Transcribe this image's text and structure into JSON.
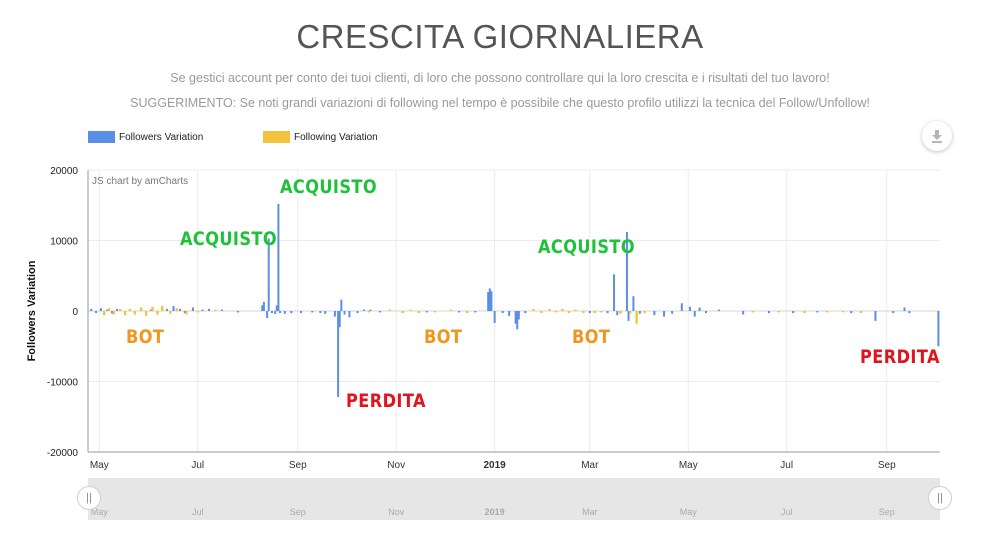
{
  "header": {
    "title": "CRESCITA GIORNALIERA",
    "description_1": "Se gestici account per conto dei tuoi clienti, di loro che possono controllare qui la loro crescita e i risultati del tuo lavoro!",
    "description_2": "SUGGERIMENTO: Se noti grandi variazioni di following nel tempo è possibile che questo profilo utilizzi la tecnica del Follow/Unfollow!"
  },
  "legend": [
    {
      "label": "Followers Variation",
      "color": "#5b8ee6"
    },
    {
      "label": "Following Variation",
      "color": "#f2c43d"
    }
  ],
  "download_icon": "download-icon",
  "credit": "JS chart by amCharts",
  "annotations": [
    {
      "text": "ACQUISTO",
      "color": "#1ec13a"
    },
    {
      "text": "ACQUISTO",
      "color": "#1ec13a"
    },
    {
      "text": "ACQUISTO",
      "color": "#1ec13a"
    },
    {
      "text": "BOT",
      "color": "#f0961e"
    },
    {
      "text": "BOT",
      "color": "#f0961e"
    },
    {
      "text": "BOT",
      "color": "#f0961e"
    },
    {
      "text": "PERDITA",
      "color": "#e0141e"
    },
    {
      "text": "PERDITA",
      "color": "#e0141e"
    }
  ],
  "chart_data": {
    "type": "bar",
    "title": "",
    "ylabel": "Followers Variation",
    "xlabel": "",
    "ylim": [
      -20000,
      20000
    ],
    "yticks": [
      20000,
      10000,
      0,
      -10000,
      -20000
    ],
    "xlim": [
      "2018-04-24",
      "2019-10-04"
    ],
    "xticks": [
      {
        "date": "2018-05-01",
        "label": "May",
        "bold": false
      },
      {
        "date": "2018-07-01",
        "label": "Jul",
        "bold": false
      },
      {
        "date": "2018-09-01",
        "label": "Sep",
        "bold": false
      },
      {
        "date": "2018-11-01",
        "label": "Nov",
        "bold": false
      },
      {
        "date": "2019-01-01",
        "label": "2019",
        "bold": true
      },
      {
        "date": "2019-03-01",
        "label": "Mar",
        "bold": false
      },
      {
        "date": "2019-05-01",
        "label": "May",
        "bold": false
      },
      {
        "date": "2019-07-01",
        "label": "Jul",
        "bold": false
      },
      {
        "date": "2019-09-01",
        "label": "Sep",
        "bold": false
      }
    ],
    "grid": true,
    "legend_position": "top-left",
    "series": [
      {
        "name": "Followers Variation",
        "color": "#5b8ee6",
        "points": [
          {
            "x": "2018-04-26",
            "y": 300
          },
          {
            "x": "2018-04-29",
            "y": -300
          },
          {
            "x": "2018-05-02",
            "y": 400
          },
          {
            "x": "2018-05-06",
            "y": 200
          },
          {
            "x": "2018-05-09",
            "y": -400
          },
          {
            "x": "2018-05-12",
            "y": 300
          },
          {
            "x": "2018-06-02",
            "y": 200
          },
          {
            "x": "2018-06-12",
            "y": 300
          },
          {
            "x": "2018-06-16",
            "y": 700
          },
          {
            "x": "2018-06-20",
            "y": 300
          },
          {
            "x": "2018-06-23",
            "y": -300
          },
          {
            "x": "2018-06-28",
            "y": 500
          },
          {
            "x": "2018-07-04",
            "y": 200
          },
          {
            "x": "2018-07-08",
            "y": 300
          },
          {
            "x": "2018-07-16",
            "y": 200
          },
          {
            "x": "2018-07-26",
            "y": -200
          },
          {
            "x": "2018-08-10",
            "y": 800
          },
          {
            "x": "2018-08-11",
            "y": 1300
          },
          {
            "x": "2018-08-13",
            "y": -1000
          },
          {
            "x": "2018-08-14",
            "y": 10300
          },
          {
            "x": "2018-08-16",
            "y": -300
          },
          {
            "x": "2018-08-18",
            "y": -400
          },
          {
            "x": "2018-08-19",
            "y": 800
          },
          {
            "x": "2018-08-20",
            "y": 15200
          },
          {
            "x": "2018-08-21",
            "y": -300
          },
          {
            "x": "2018-08-24",
            "y": -400
          },
          {
            "x": "2018-08-28",
            "y": -300
          },
          {
            "x": "2018-09-03",
            "y": -300
          },
          {
            "x": "2018-09-10",
            "y": -200
          },
          {
            "x": "2018-09-15",
            "y": -300
          },
          {
            "x": "2018-09-18",
            "y": -400
          },
          {
            "x": "2018-09-24",
            "y": -800
          },
          {
            "x": "2018-09-26",
            "y": -12200
          },
          {
            "x": "2018-09-27",
            "y": -2300
          },
          {
            "x": "2018-09-28",
            "y": 1600
          },
          {
            "x": "2018-09-30",
            "y": -500
          },
          {
            "x": "2018-10-03",
            "y": -900
          },
          {
            "x": "2018-10-08",
            "y": -300
          },
          {
            "x": "2018-10-12",
            "y": 200
          },
          {
            "x": "2018-10-16",
            "y": 200
          },
          {
            "x": "2018-10-22",
            "y": -200
          },
          {
            "x": "2018-11-20",
            "y": -200
          },
          {
            "x": "2018-12-10",
            "y": -200
          },
          {
            "x": "2018-12-20",
            "y": -200
          },
          {
            "x": "2018-12-28",
            "y": 2700
          },
          {
            "x": "2018-12-29",
            "y": 3200
          },
          {
            "x": "2018-12-30",
            "y": 2800
          },
          {
            "x": "2019-01-01",
            "y": -1700
          },
          {
            "x": "2019-01-06",
            "y": -300
          },
          {
            "x": "2019-01-10",
            "y": -700
          },
          {
            "x": "2019-01-14",
            "y": -1800
          },
          {
            "x": "2019-01-15",
            "y": -2600
          },
          {
            "x": "2019-01-16",
            "y": -1200
          },
          {
            "x": "2019-01-20",
            "y": -300
          },
          {
            "x": "2019-03-01",
            "y": -300
          },
          {
            "x": "2019-03-12",
            "y": -300
          },
          {
            "x": "2019-03-16",
            "y": 5200
          },
          {
            "x": "2019-03-18",
            "y": -600
          },
          {
            "x": "2019-03-24",
            "y": 11200
          },
          {
            "x": "2019-03-25",
            "y": -1400
          },
          {
            "x": "2019-03-28",
            "y": 2100
          },
          {
            "x": "2019-04-01",
            "y": -400
          },
          {
            "x": "2019-04-10",
            "y": -600
          },
          {
            "x": "2019-04-16",
            "y": -800
          },
          {
            "x": "2019-04-21",
            "y": -400
          },
          {
            "x": "2019-04-27",
            "y": 1100
          },
          {
            "x": "2019-05-02",
            "y": 600
          },
          {
            "x": "2019-05-05",
            "y": -800
          },
          {
            "x": "2019-05-08",
            "y": 500
          },
          {
            "x": "2019-05-12",
            "y": -300
          },
          {
            "x": "2019-05-20",
            "y": 200
          },
          {
            "x": "2019-06-04",
            "y": -500
          },
          {
            "x": "2019-06-20",
            "y": -300
          },
          {
            "x": "2019-07-05",
            "y": -300
          },
          {
            "x": "2019-07-20",
            "y": -200
          },
          {
            "x": "2019-08-10",
            "y": -300
          },
          {
            "x": "2019-08-25",
            "y": -1400
          },
          {
            "x": "2019-09-05",
            "y": -300
          },
          {
            "x": "2019-09-12",
            "y": 500
          },
          {
            "x": "2019-09-15",
            "y": -300
          },
          {
            "x": "2019-10-03",
            "y": -5000
          }
        ]
      },
      {
        "name": "Following Variation",
        "color": "#f2c43d",
        "points": [
          {
            "x": "2018-05-04",
            "y": -600
          },
          {
            "x": "2018-05-07",
            "y": 400
          },
          {
            "x": "2018-05-10",
            "y": -500
          },
          {
            "x": "2018-05-14",
            "y": 300
          },
          {
            "x": "2018-05-17",
            "y": -600
          },
          {
            "x": "2018-05-20",
            "y": 300
          },
          {
            "x": "2018-05-23",
            "y": -500
          },
          {
            "x": "2018-05-27",
            "y": 500
          },
          {
            "x": "2018-05-30",
            "y": -700
          },
          {
            "x": "2018-06-03",
            "y": 600
          },
          {
            "x": "2018-06-06",
            "y": -500
          },
          {
            "x": "2018-06-09",
            "y": 700
          },
          {
            "x": "2018-06-14",
            "y": -400
          },
          {
            "x": "2018-06-18",
            "y": 400
          },
          {
            "x": "2018-06-24",
            "y": -500
          },
          {
            "x": "2018-07-01",
            "y": -200
          },
          {
            "x": "2018-07-12",
            "y": 200
          },
          {
            "x": "2018-10-15",
            "y": -200
          },
          {
            "x": "2018-10-28",
            "y": 200
          },
          {
            "x": "2018-11-05",
            "y": -300
          },
          {
            "x": "2018-11-10",
            "y": 200
          },
          {
            "x": "2018-11-15",
            "y": -300
          },
          {
            "x": "2018-11-25",
            "y": -200
          },
          {
            "x": "2018-12-05",
            "y": 200
          },
          {
            "x": "2018-12-15",
            "y": -300
          },
          {
            "x": "2019-01-25",
            "y": 300
          },
          {
            "x": "2019-01-30",
            "y": -300
          },
          {
            "x": "2019-02-04",
            "y": 300
          },
          {
            "x": "2019-02-08",
            "y": -200
          },
          {
            "x": "2019-02-12",
            "y": 300
          },
          {
            "x": "2019-02-16",
            "y": -300
          },
          {
            "x": "2019-02-20",
            "y": 200
          },
          {
            "x": "2019-02-25",
            "y": -300
          },
          {
            "x": "2019-03-04",
            "y": -300
          },
          {
            "x": "2019-03-08",
            "y": -200
          },
          {
            "x": "2019-03-20",
            "y": -400
          },
          {
            "x": "2019-03-26",
            "y": -400
          },
          {
            "x": "2019-03-30",
            "y": -1800
          },
          {
            "x": "2019-04-04",
            "y": -300
          },
          {
            "x": "2019-06-10",
            "y": -200
          },
          {
            "x": "2019-06-26",
            "y": -200
          },
          {
            "x": "2019-07-12",
            "y": -300
          },
          {
            "x": "2019-07-26",
            "y": -200
          },
          {
            "x": "2019-08-05",
            "y": -200
          },
          {
            "x": "2019-08-16",
            "y": -300
          }
        ]
      }
    ]
  }
}
